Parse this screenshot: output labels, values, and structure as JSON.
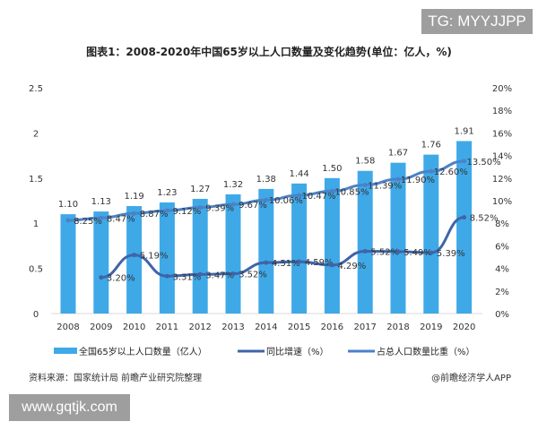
{
  "watermark_top": "TG: MYYJJPP",
  "watermark_bottom": "www.gqtjk.com",
  "source": "资料来源：国家统计局 前瞻产业研究院整理",
  "credit": "@前瞻经济学人APP",
  "colors": {
    "bar": "#3fa9e8",
    "growth": "#3f64a8",
    "share": "#4a82c8"
  },
  "chart_data": {
    "type": "bar",
    "title": "图表1：2008-2020年中国65岁以上人口数量及变化趋势(单位：亿人，%)",
    "categories": [
      "2008",
      "2009",
      "2010",
      "2011",
      "2012",
      "2013",
      "2014",
      "2015",
      "2016",
      "2017",
      "2018",
      "2019",
      "2020"
    ],
    "ylim": [
      0,
      2.5
    ],
    "y2lim": [
      0,
      20
    ],
    "yticks": [
      "0",
      "0.5",
      "1",
      "1.5",
      "2",
      "2.5"
    ],
    "y2ticks": [
      "0%",
      "2%",
      "4%",
      "6%",
      "8%",
      "10%",
      "12%",
      "14%",
      "16%",
      "18%",
      "20%"
    ],
    "series": [
      {
        "name": "全国65岁以上人口数量（亿人）",
        "type": "bar",
        "axis": "left",
        "values": [
          1.1,
          1.13,
          1.19,
          1.23,
          1.27,
          1.32,
          1.38,
          1.44,
          1.5,
          1.58,
          1.67,
          1.76,
          1.91
        ],
        "labels": [
          "1.10",
          "1.13",
          "1.19",
          "1.23",
          "1.27",
          "1.32",
          "1.38",
          "1.44",
          "1.50",
          "1.58",
          "1.67",
          "1.76",
          "1.91"
        ]
      },
      {
        "name": "同比增速（%）",
        "type": "line",
        "axis": "right",
        "values": [
          null,
          3.2,
          5.19,
          3.31,
          3.47,
          3.52,
          4.51,
          4.59,
          4.29,
          5.52,
          5.49,
          5.39,
          8.52
        ],
        "labels": [
          null,
          "3.20%",
          "5.19%",
          "3.31%",
          "3.47%",
          "3.52%",
          "4.51%",
          "4.59%",
          "4.29%",
          "5.52%",
          "5.49%",
          "5.39%",
          "8.52%"
        ]
      },
      {
        "name": "占总人口数量比重（%）",
        "type": "line",
        "axis": "right",
        "values": [
          8.25,
          8.47,
          8.87,
          9.12,
          9.39,
          9.67,
          10.06,
          10.47,
          10.85,
          11.39,
          11.9,
          12.6,
          13.5
        ],
        "labels": [
          "8.25%",
          "8.47%",
          "8.87%",
          "9.12%",
          "9.39%",
          "9.67%",
          "10.06%",
          "10.47%",
          "10.85%",
          "11.39%",
          "11.90%",
          "12.60%",
          "13.50%"
        ]
      }
    ]
  }
}
